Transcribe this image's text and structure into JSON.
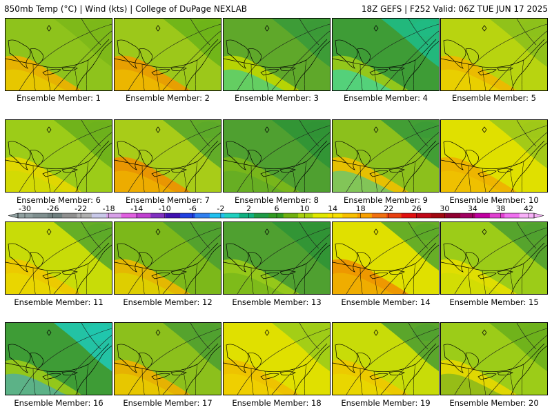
{
  "header": {
    "left": "850mb Temp (°C) | Wind (kts) | College of DuPage NEXLAB",
    "right": "18Z GEFS | F252 Valid: 06Z TUE JUN 17 2025"
  },
  "colorbar": {
    "ticks": [
      "-30",
      "-26",
      "-22",
      "-18",
      "-14",
      "-10",
      "-6",
      "-2",
      "2",
      "6",
      "10",
      "14",
      "18",
      "22",
      "26",
      "30",
      "34",
      "38",
      "42"
    ],
    "colors": [
      "#8f9f9f",
      "#7f8f8f",
      "#6f7f7f",
      "#8f8f8f",
      "#afafaf",
      "#c8c8e8",
      "#d8a0e8",
      "#e060e0",
      "#c040d0",
      "#8030c0",
      "#4010b0",
      "#2040e0",
      "#3080f0",
      "#20c0f0",
      "#20d0c0",
      "#10b080",
      "#1e9a46",
      "#309a20",
      "#70b010",
      "#a8d010",
      "#e0e800",
      "#f8e000",
      "#f8c000",
      "#f8a000",
      "#f07010",
      "#e84010",
      "#e01010",
      "#c00818",
      "#a00810",
      "#900030",
      "#a00060",
      "#c000a0",
      "#e040d0",
      "#f070f0",
      "#f8b0f8"
    ]
  },
  "members": [
    {
      "label": "Ensemble Member: 1",
      "base": "#8ec31c",
      "warm": "#f0b000",
      "cool": "#7cb81a",
      "accent": "#e8d800"
    },
    {
      "label": "Ensemble Member: 2",
      "base": "#9cc81a",
      "warm": "#f09a00",
      "cool": "#6db41a",
      "accent": "#f0c800"
    },
    {
      "label": "Ensemble Member: 3",
      "base": "#5fa82a",
      "warm": "#c0d800",
      "cool": "#3a9a38",
      "accent": "#20c8b0"
    },
    {
      "label": "Ensemble Member: 4",
      "base": "#3e9c36",
      "warm": "#9ccc18",
      "cool": "#1fbb84",
      "accent": "#20d8c8"
    },
    {
      "label": "Ensemble Member: 5",
      "base": "#b8d410",
      "warm": "#f0b800",
      "cool": "#8cc01c",
      "accent": "#e8e000"
    },
    {
      "label": "Ensemble Member: 6",
      "base": "#9ccc18",
      "warm": "#e8d800",
      "cool": "#6cb01c",
      "accent": "#c8dc08"
    },
    {
      "label": "Ensemble Member: 7",
      "base": "#a8cc18",
      "warm": "#f09000",
      "cool": "#5aa82a",
      "accent": "#f0c000"
    },
    {
      "label": "Ensemble Member: 8",
      "base": "#4fa030",
      "warm": "#7cb81a",
      "cool": "#2f9336",
      "accent": "#5aa82a"
    },
    {
      "label": "Ensemble Member: 9",
      "base": "#8cc01c",
      "warm": "#f0c000",
      "cool": "#3a9a38",
      "accent": "#30c8a0"
    },
    {
      "label": "Ensemble Member: 10",
      "base": "#e0e000",
      "warm": "#f0b000",
      "cool": "#9cc81a",
      "accent": "#f0c800"
    },
    {
      "label": "Ensemble Member: 11",
      "base": "#c8dc08",
      "warm": "#f0c800",
      "cool": "#5aa82a",
      "accent": "#e8e000"
    },
    {
      "label": "Ensemble Member: 12",
      "base": "#7cb81a",
      "warm": "#f0b800",
      "cool": "#4fa030",
      "accent": "#d8e000"
    },
    {
      "label": "Ensemble Member: 13",
      "base": "#4fa030",
      "warm": "#9ccc18",
      "cool": "#2f9336",
      "accent": "#6cb01c"
    },
    {
      "label": "Ensemble Member: 14",
      "base": "#e0e000",
      "warm": "#f09000",
      "cool": "#5aa82a",
      "accent": "#f0c000"
    },
    {
      "label": "Ensemble Member: 15",
      "base": "#9ccc18",
      "warm": "#e8e000",
      "cool": "#4fa030",
      "accent": "#c8dc08"
    },
    {
      "label": "Ensemble Member: 16",
      "base": "#3e9c36",
      "warm": "#9ccc18",
      "cool": "#20c8b0",
      "accent": "#30a0e0"
    },
    {
      "label": "Ensemble Member: 17",
      "base": "#8cc01c",
      "warm": "#f0b000",
      "cool": "#4fa030",
      "accent": "#e8d800"
    },
    {
      "label": "Ensemble Member: 18",
      "base": "#e0e000",
      "warm": "#f0c000",
      "cool": "#9ccc18",
      "accent": "#f0d800"
    },
    {
      "label": "Ensemble Member: 19",
      "base": "#c8dc08",
      "warm": "#f0c800",
      "cool": "#4fa030",
      "accent": "#e8e000"
    },
    {
      "label": "Ensemble Member: 20",
      "base": "#9ccc18",
      "warm": "#e8d800",
      "cool": "#6cb01c",
      "accent": "#5aa82a"
    }
  ]
}
